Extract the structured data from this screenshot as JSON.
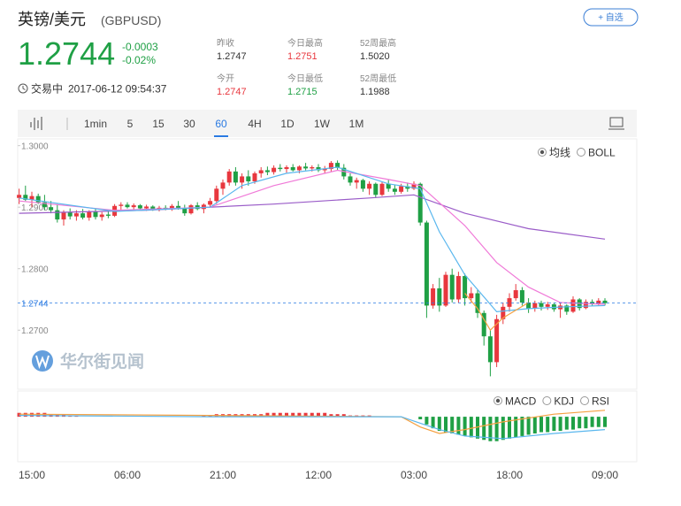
{
  "header": {
    "name": "英镑/美元",
    "code": "(GBPUSD)",
    "watch": "+ 自选"
  },
  "quote": {
    "price": "1.2744",
    "change": "-0.0003",
    "change_pct": "-0.02%",
    "status": "交易中",
    "time": "2017-06-12 09:54:37",
    "stats": [
      {
        "label": "昨收",
        "value": "1.2747",
        "color": "#333333"
      },
      {
        "label": "今日最高",
        "value": "1.2751",
        "color": "#e8373e"
      },
      {
        "label": "52周最高",
        "value": "1.5020",
        "color": "#333333"
      },
      {
        "label": "今开",
        "value": "1.2747",
        "color": "#e8373e"
      },
      {
        "label": "今日最低",
        "value": "1.2715",
        "color": "#1fa045"
      },
      {
        "label": "52周最低",
        "value": "1.1988",
        "color": "#333333"
      }
    ]
  },
  "toolbar": {
    "periods": [
      "1min",
      "5",
      "15",
      "30",
      "60",
      "4H",
      "1D",
      "1W",
      "1M"
    ],
    "active": "60"
  },
  "watermark": "华尔街见闻",
  "chart_data": {
    "type": "candlestick",
    "up_color": "#e8373e",
    "down_color": "#1fa045",
    "categories": [
      null,
      null,
      "15:00",
      null,
      null,
      null,
      null,
      null,
      null,
      null,
      null,
      null,
      null,
      null,
      null,
      null,
      null,
      "06:00",
      null,
      null,
      null,
      null,
      null,
      null,
      null,
      null,
      null,
      null,
      null,
      null,
      null,
      null,
      "21:00",
      null,
      null,
      null,
      null,
      null,
      null,
      null,
      null,
      null,
      null,
      null,
      null,
      null,
      null,
      "12:00",
      null,
      null,
      null,
      null,
      null,
      null,
      null,
      null,
      null,
      null,
      null,
      null,
      null,
      null,
      "03:00",
      null,
      null,
      null,
      null,
      null,
      null,
      null,
      null,
      null,
      null,
      null,
      null,
      null,
      null,
      "18:00",
      null,
      null,
      null,
      null,
      null,
      null,
      null,
      null,
      null,
      null,
      null,
      null,
      null,
      null,
      "09:00"
    ],
    "ohlc": [
      [
        1.2915,
        1.293,
        1.2905,
        1.292
      ],
      [
        1.292,
        1.2935,
        1.291,
        1.2912
      ],
      [
        1.2912,
        1.2925,
        1.29,
        1.2918
      ],
      [
        1.2918,
        1.2922,
        1.2905,
        1.2908
      ],
      [
        1.2908,
        1.292,
        1.2895,
        1.29
      ],
      [
        1.29,
        1.291,
        1.289,
        1.2895
      ],
      [
        1.2895,
        1.2905,
        1.2875,
        1.288
      ],
      [
        1.288,
        1.2895,
        1.287,
        1.2892
      ],
      [
        1.2892,
        1.2898,
        1.288,
        1.2885
      ],
      [
        1.2885,
        1.2895,
        1.2878,
        1.289
      ],
      [
        1.289,
        1.2897,
        1.288,
        1.2883
      ],
      [
        1.2883,
        1.2895,
        1.2878,
        1.2893
      ],
      [
        1.2893,
        1.2898,
        1.288,
        1.2884
      ],
      [
        1.2884,
        1.2892,
        1.2878,
        1.2888
      ],
      [
        1.2888,
        1.2895,
        1.2882,
        1.2886
      ],
      [
        1.2886,
        1.2905,
        1.2884,
        1.2902
      ],
      [
        1.2902,
        1.2908,
        1.2896,
        1.2904
      ],
      [
        1.2904,
        1.2908,
        1.2898,
        1.29
      ],
      [
        1.29,
        1.2906,
        1.2895,
        1.2903
      ],
      [
        1.2903,
        1.2905,
        1.2896,
        1.2898
      ],
      [
        1.2898,
        1.2904,
        1.2894,
        1.2901
      ],
      [
        1.2901,
        1.2903,
        1.2894,
        1.2896
      ],
      [
        1.2896,
        1.2902,
        1.2893,
        1.2899
      ],
      [
        1.2899,
        1.2903,
        1.2895,
        1.2897
      ],
      [
        1.2897,
        1.2905,
        1.2894,
        1.2902
      ],
      [
        1.2902,
        1.291,
        1.2896,
        1.2898
      ],
      [
        1.2898,
        1.2904,
        1.2886,
        1.289
      ],
      [
        1.289,
        1.2905,
        1.2888,
        1.2903
      ],
      [
        1.2903,
        1.2908,
        1.2895,
        1.2897
      ],
      [
        1.2897,
        1.2906,
        1.289,
        1.2904
      ],
      [
        1.2904,
        1.2915,
        1.29,
        1.291
      ],
      [
        1.291,
        1.2935,
        1.2905,
        1.293
      ],
      [
        1.293,
        1.2945,
        1.292,
        1.294
      ],
      [
        1.294,
        1.2962,
        1.2935,
        1.2958
      ],
      [
        1.2958,
        1.2965,
        1.2935,
        1.294
      ],
      [
        1.294,
        1.2955,
        1.293,
        1.295
      ],
      [
        1.295,
        1.296,
        1.2935,
        1.2942
      ],
      [
        1.2942,
        1.2958,
        1.2938,
        1.2955
      ],
      [
        1.2955,
        1.2965,
        1.2948,
        1.296
      ],
      [
        1.296,
        1.2966,
        1.2952,
        1.2957
      ],
      [
        1.2957,
        1.2968,
        1.2953,
        1.2964
      ],
      [
        1.2964,
        1.297,
        1.2958,
        1.2962
      ],
      [
        1.2962,
        1.2968,
        1.2956,
        1.2965
      ],
      [
        1.2965,
        1.297,
        1.2958,
        1.296
      ],
      [
        1.296,
        1.2968,
        1.2955,
        1.2966
      ],
      [
        1.2966,
        1.2972,
        1.296,
        1.2963
      ],
      [
        1.2963,
        1.2968,
        1.2958,
        1.2965
      ],
      [
        1.2965,
        1.297,
        1.2957,
        1.296
      ],
      [
        1.296,
        1.2967,
        1.2955,
        1.2962
      ],
      [
        1.2962,
        1.2975,
        1.2958,
        1.2972
      ],
      [
        1.2972,
        1.2976,
        1.296,
        1.2964
      ],
      [
        1.2964,
        1.297,
        1.2945,
        1.295
      ],
      [
        1.295,
        1.2955,
        1.2935,
        1.294
      ],
      [
        1.294,
        1.2948,
        1.293,
        1.2944
      ],
      [
        1.2944,
        1.2946,
        1.2925,
        1.293
      ],
      [
        1.293,
        1.2942,
        1.292,
        1.2938
      ],
      [
        1.2938,
        1.294,
        1.2915,
        1.292
      ],
      [
        1.292,
        1.2942,
        1.2918,
        1.2938
      ],
      [
        1.2938,
        1.2944,
        1.2925,
        1.293
      ],
      [
        1.293,
        1.2936,
        1.292,
        1.2925
      ],
      [
        1.2925,
        1.2938,
        1.2922,
        1.2934
      ],
      [
        1.2934,
        1.294,
        1.2925,
        1.293
      ],
      [
        1.293,
        1.2942,
        1.2928,
        1.2938
      ],
      [
        1.2938,
        1.294,
        1.287,
        1.2875
      ],
      [
        1.2875,
        1.2878,
        1.272,
        1.274
      ],
      [
        1.274,
        1.2775,
        1.2735,
        1.2768
      ],
      [
        1.2768,
        1.2785,
        1.273,
        1.274
      ],
      [
        1.274,
        1.2795,
        1.2738,
        1.279
      ],
      [
        1.279,
        1.28,
        1.2745,
        1.275
      ],
      [
        1.275,
        1.2795,
        1.2745,
        1.2788
      ],
      [
        1.2788,
        1.2792,
        1.274,
        1.2752
      ],
      [
        1.2752,
        1.277,
        1.2745,
        1.276
      ],
      [
        1.276,
        1.2765,
        1.272,
        1.2728
      ],
      [
        1.2728,
        1.2732,
        1.2675,
        1.269
      ],
      [
        1.269,
        1.27,
        1.2625,
        1.2648
      ],
      [
        1.2648,
        1.2725,
        1.264,
        1.2718
      ],
      [
        1.2718,
        1.2745,
        1.271,
        1.2738
      ],
      [
        1.2738,
        1.276,
        1.273,
        1.2752
      ],
      [
        1.2752,
        1.2775,
        1.2748,
        1.2765
      ],
      [
        1.2765,
        1.277,
        1.274,
        1.2745
      ],
      [
        1.2745,
        1.2752,
        1.2728,
        1.2735
      ],
      [
        1.2735,
        1.2748,
        1.273,
        1.2744
      ],
      [
        1.2744,
        1.2748,
        1.2732,
        1.2738
      ],
      [
        1.2738,
        1.2746,
        1.2733,
        1.2742
      ],
      [
        1.2742,
        1.2745,
        1.273,
        1.2734
      ],
      [
        1.2734,
        1.2744,
        1.272,
        1.274
      ],
      [
        1.274,
        1.2742,
        1.2725,
        1.273
      ],
      [
        1.273,
        1.2755,
        1.2728,
        1.275
      ],
      [
        1.275,
        1.2752,
        1.2732,
        1.2736
      ],
      [
        1.2736,
        1.275,
        1.2734,
        1.2746
      ],
      [
        1.2746,
        1.275,
        1.274,
        1.2742
      ],
      [
        1.2742,
        1.2752,
        1.274,
        1.2748
      ],
      [
        1.2748,
        1.2752,
        1.274,
        1.2744
      ]
    ],
    "ylim": [
      1.2604,
      1.3011
    ],
    "yticks": [
      {
        "value": 1.3,
        "label": "1.3000"
      },
      {
        "value": 1.29,
        "label": "1.2900"
      },
      {
        "value": 1.28,
        "label": "1.2800"
      },
      {
        "value": 1.27,
        "label": "1.2700"
      }
    ],
    "last_price": 1.2744,
    "last_color": "#2a7ae2",
    "indicators": [
      {
        "name": "均线",
        "selected": true
      },
      {
        "name": "BOLL",
        "selected": false
      }
    ],
    "lines": [
      {
        "color": "#9a5cc8",
        "x": [
          0,
          20,
          40,
          55,
          62,
          70,
          80,
          92
        ],
        "values": [
          1.289,
          1.2895,
          1.2905,
          1.2915,
          1.292,
          1.289,
          1.2865,
          1.2848
        ]
      },
      {
        "color": "#f07ad8",
        "x": [
          0,
          15,
          30,
          40,
          50,
          58,
          63,
          70,
          75,
          80,
          85,
          92
        ],
        "values": [
          1.291,
          1.2895,
          1.29,
          1.2935,
          1.296,
          1.2945,
          1.2935,
          1.287,
          1.281,
          1.277,
          1.2745,
          1.2742
        ]
      },
      {
        "color": "#5ab7ee",
        "x": [
          0,
          15,
          30,
          35,
          42,
          50,
          58,
          63,
          66,
          70,
          75,
          80,
          86,
          92
        ],
        "values": [
          1.2915,
          1.2893,
          1.29,
          1.2935,
          1.2955,
          1.2965,
          1.2938,
          1.293,
          1.286,
          1.279,
          1.273,
          1.2735,
          1.2738,
          1.274
        ]
      },
      {
        "color": "#f5a142",
        "x": [
          70,
          72,
          74,
          76,
          80
        ],
        "values": [
          1.276,
          1.2735,
          1.27,
          1.272,
          1.2745
        ]
      }
    ],
    "macd": {
      "ylim": [
        -0.0035,
        0.002
      ],
      "indicators": [
        {
          "name": "MACD",
          "selected": true
        },
        {
          "name": "KDJ",
          "selected": false
        },
        {
          "name": "RSI",
          "selected": false
        }
      ],
      "hist": [
        0.0003,
        0.0003,
        0.0003,
        0.0003,
        0.0003,
        0.0002,
        0.0002,
        0.0002,
        0.0001,
        0.0001,
        0,
        0,
        0,
        0,
        0,
        0,
        0,
        0,
        0,
        0,
        0,
        0,
        0,
        0,
        0,
        0,
        0,
        0,
        0,
        0.0001,
        0.0001,
        0.0002,
        0.0002,
        0.0002,
        0.0002,
        0.0002,
        0.0002,
        0.0002,
        0.0002,
        0.0003,
        0.0003,
        0.0003,
        0.0003,
        0.0003,
        0.0003,
        0.0003,
        0.0003,
        0.0003,
        0.0003,
        0.0002,
        0.0002,
        0.0002,
        0.0001,
        0.0001,
        0.0001,
        0.0001,
        0,
        0,
        0,
        0,
        0,
        0,
        0,
        -0.0002,
        -0.0006,
        -0.0009,
        -0.0011,
        -0.0012,
        -0.0013,
        -0.0014,
        -0.0015,
        -0.0016,
        -0.0017,
        -0.0018,
        -0.0019,
        -0.0019,
        -0.0018,
        -0.0017,
        -0.0016,
        -0.0015,
        -0.0014,
        -0.0013,
        -0.0012,
        -0.0012,
        -0.0011,
        -0.0011,
        -0.001,
        -0.001,
        -0.0009,
        -0.0009,
        -0.0008,
        -0.0008,
        -0.0008
      ],
      "lines": [
        {
          "color": "#f5a142",
          "x": [
            0,
            30,
            60,
            63,
            66,
            70,
            76,
            84,
            92
          ],
          "values": [
            0.0002,
            0.0001,
            0,
            -0.0008,
            -0.0013,
            -0.001,
            -0.0004,
            0.0002,
            0.0005
          ]
        },
        {
          "color": "#5ab7ee",
          "x": [
            0,
            30,
            60,
            63,
            66,
            70,
            76,
            84,
            92
          ],
          "values": [
            0.0001,
            0,
            0,
            -0.0005,
            -0.001,
            -0.0015,
            -0.0017,
            -0.0013,
            -0.001
          ]
        }
      ]
    }
  }
}
